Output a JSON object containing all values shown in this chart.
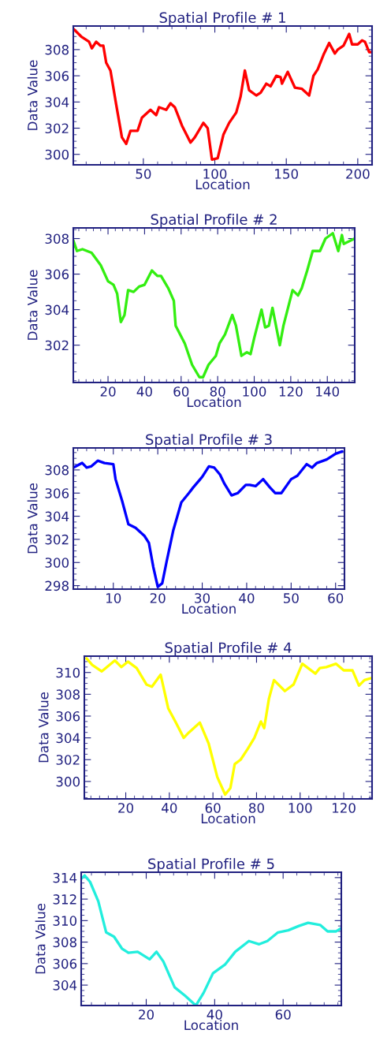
{
  "chart_data": [
    {
      "type": "line",
      "title": "Spatial Profile # 1",
      "xlabel": "Location",
      "ylabel": "Data Value",
      "xlim": [
        1,
        210
      ],
      "ylim": [
        299.2,
        309.8
      ],
      "xticks": [
        50,
        100,
        150,
        200
      ],
      "yticks": [
        300,
        302,
        304,
        306,
        308
      ],
      "x": [
        1,
        6.5,
        12,
        14,
        17,
        20,
        22,
        24,
        27,
        31,
        35,
        38,
        41,
        46,
        49,
        55,
        59,
        61,
        66,
        69,
        72,
        77,
        83,
        86,
        92,
        95,
        98,
        102,
        106,
        110,
        115,
        118,
        121,
        124,
        129,
        132,
        136,
        139,
        143,
        146,
        147,
        151,
        156,
        161,
        166,
        169,
        172,
        176,
        180,
        184,
        186,
        190,
        194,
        196,
        200,
        203,
        205,
        208,
        210
      ],
      "series": [
        {
          "color": "#ff0000",
          "values": [
            309.6,
            309.0,
            308.6,
            308.1,
            308.6,
            308.3,
            308.3,
            307.0,
            306.4,
            303.8,
            301.3,
            300.8,
            301.8,
            301.8,
            302.8,
            303.4,
            303.0,
            303.6,
            303.4,
            303.9,
            303.6,
            302.2,
            300.9,
            301.3,
            302.4,
            302.0,
            299.6,
            299.7,
            301.5,
            302.4,
            303.2,
            304.4,
            306.4,
            304.9,
            304.5,
            304.7,
            305.4,
            305.2,
            306.0,
            305.9,
            305.4,
            306.3,
            305.1,
            305.0,
            304.5,
            306.0,
            306.5,
            307.6,
            308.5,
            307.7,
            308.0,
            308.3,
            309.2,
            308.4,
            308.4,
            308.7,
            308.6,
            307.8,
            307.8
          ]
        }
      ]
    },
    {
      "type": "line",
      "title": "Spatial Profile # 2",
      "xlabel": "Location",
      "ylabel": "Data Value",
      "xlim": [
        1,
        155
      ],
      "ylim": [
        299.9,
        308.6
      ],
      "xticks": [
        20,
        40,
        60,
        80,
        100,
        120,
        140
      ],
      "yticks": [
        302,
        304,
        306,
        308
      ],
      "x": [
        1,
        3,
        6,
        11,
        16,
        20,
        23,
        25,
        27,
        29,
        31,
        34,
        37,
        40,
        44,
        47,
        49,
        53,
        56,
        57,
        62,
        66,
        70,
        72,
        75,
        79,
        81,
        84,
        88,
        90,
        93,
        96,
        98,
        100,
        104,
        106,
        108,
        110,
        114,
        116,
        119,
        121,
        124,
        126,
        129,
        132,
        136,
        139,
        143,
        146,
        148,
        149,
        155
      ],
      "series": [
        {
          "color": "#33ee11",
          "values": [
            307.9,
            307.3,
            307.4,
            307.2,
            306.5,
            305.6,
            305.4,
            304.9,
            303.3,
            303.7,
            305.1,
            305.0,
            305.3,
            305.4,
            306.2,
            305.9,
            305.9,
            305.2,
            304.5,
            303.1,
            302.1,
            300.9,
            300.2,
            300.2,
            300.9,
            301.4,
            302.1,
            302.6,
            303.7,
            303.1,
            301.4,
            301.6,
            301.5,
            302.4,
            304.0,
            303.0,
            303.1,
            304.1,
            302.0,
            303.1,
            304.3,
            305.1,
            304.8,
            305.2,
            306.2,
            307.3,
            307.3,
            308.0,
            308.3,
            307.3,
            308.2,
            307.7,
            308.0
          ]
        }
      ]
    },
    {
      "type": "line",
      "title": "Spatial Profile # 3",
      "xlabel": "Location",
      "ylabel": "Data Value",
      "xlim": [
        1,
        62
      ],
      "ylim": [
        297.7,
        309.9
      ],
      "xticks": [
        10,
        20,
        30,
        40,
        50,
        60
      ],
      "yticks": [
        298,
        300,
        302,
        304,
        306,
        308
      ],
      "x": [
        1,
        3,
        4,
        5,
        6.5,
        8,
        10,
        10.5,
        12,
        13.4,
        15,
        17,
        18,
        19,
        20,
        21,
        22,
        23.5,
        25.3,
        27,
        28,
        30,
        31.5,
        32.7,
        34,
        35,
        36.6,
        38,
        39.8,
        40.7,
        42,
        43.7,
        45.2,
        46.4,
        47.8,
        50,
        51.4,
        53.5,
        54.7,
        55.8,
        58,
        60,
        61.5
      ],
      "series": [
        {
          "color": "#0000ff",
          "values": [
            308.2,
            308.6,
            308.2,
            308.3,
            308.8,
            308.6,
            308.5,
            307.2,
            305.3,
            303.3,
            303.0,
            302.3,
            301.7,
            299.6,
            297.9,
            298.2,
            300.1,
            302.8,
            305.2,
            306.0,
            306.5,
            307.4,
            308.3,
            308.2,
            307.6,
            306.8,
            305.8,
            306.0,
            306.7,
            306.7,
            306.6,
            307.2,
            306.5,
            306.0,
            306.0,
            307.2,
            307.5,
            308.5,
            308.2,
            308.6,
            308.9,
            309.4,
            309.6
          ]
        }
      ]
    },
    {
      "type": "line",
      "title": "Spatial Profile # 4",
      "xlabel": "Location",
      "ylabel": "Data Value",
      "xlim": [
        1,
        133
      ],
      "ylim": [
        298.4,
        311.5
      ],
      "xticks": [
        20,
        40,
        60,
        80,
        100,
        120
      ],
      "yticks": [
        300,
        302,
        304,
        306,
        308,
        310
      ],
      "x": [
        2,
        4.6,
        9,
        15,
        18,
        21,
        25,
        29.5,
        32,
        36,
        39.5,
        43,
        46.6,
        49,
        54,
        58,
        62,
        65.6,
        68,
        70,
        72.7,
        76,
        79,
        82,
        83.5,
        85.7,
        88,
        93,
        97,
        101,
        107,
        109,
        112,
        116.5,
        120,
        124,
        127,
        129.5,
        133
      ],
      "series": [
        {
          "color": "#ffff00",
          "values": [
            311.3,
            310.7,
            310.1,
            311.1,
            310.5,
            311.0,
            310.4,
            308.9,
            308.7,
            309.8,
            306.7,
            305.4,
            304.0,
            304.5,
            305.4,
            303.5,
            300.4,
            298.8,
            299.4,
            301.6,
            302.0,
            303.0,
            304.0,
            305.5,
            304.9,
            307.6,
            309.3,
            308.3,
            308.9,
            310.8,
            309.9,
            310.4,
            310.5,
            310.8,
            310.2,
            310.2,
            308.8,
            309.3,
            309.5
          ]
        }
      ]
    },
    {
      "type": "line",
      "title": "Spatial Profile # 5",
      "xlabel": "Location",
      "ylabel": "Data Value",
      "xlim": [
        1,
        77
      ],
      "ylim": [
        302.1,
        314.5
      ],
      "xticks": [
        20,
        40,
        60
      ],
      "yticks": [
        304,
        306,
        308,
        310,
        312,
        314
      ],
      "x": [
        1,
        2,
        3.6,
        6,
        8.3,
        10.6,
        12.9,
        14.8,
        17.5,
        21,
        23,
        25,
        28.3,
        31.4,
        34.5,
        36.8,
        39.5,
        43,
        46,
        50,
        53,
        55.4,
        58.5,
        61.5,
        64.6,
        67.3,
        70.8,
        73,
        75.5,
        77
      ],
      "series": [
        {
          "color": "#22eedd",
          "values": [
            313.9,
            314.2,
            313.6,
            311.8,
            308.9,
            308.5,
            307.4,
            307.0,
            307.1,
            306.4,
            307.1,
            306.2,
            303.8,
            303.0,
            302.1,
            303.3,
            305.1,
            305.9,
            307.1,
            308.1,
            307.8,
            308.1,
            308.9,
            309.1,
            309.5,
            309.8,
            309.6,
            309.0,
            309.0,
            309.3
          ]
        }
      ]
    }
  ]
}
